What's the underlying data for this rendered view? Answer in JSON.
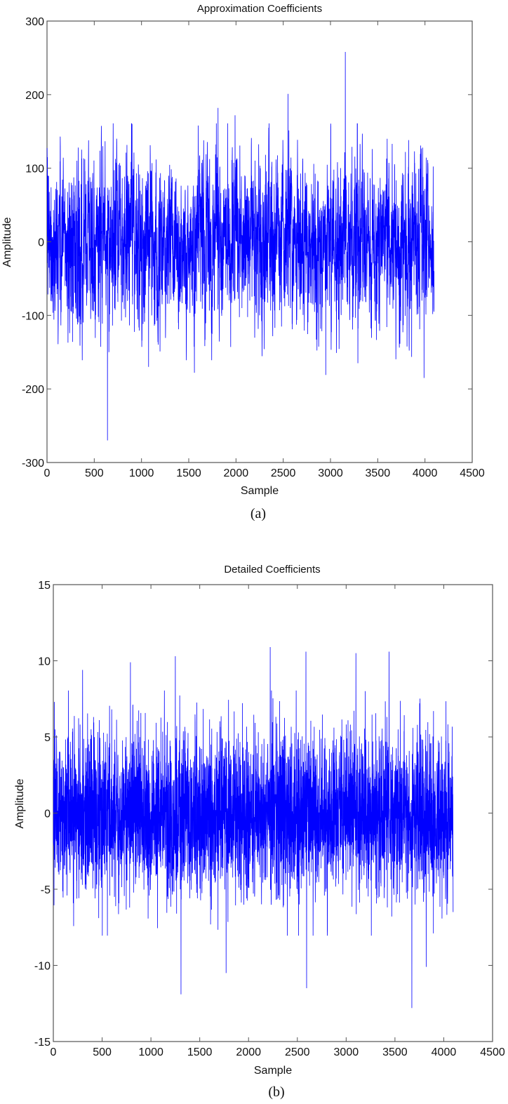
{
  "chart_data": [
    {
      "type": "line",
      "title": "Approximation Coefficients",
      "xlabel": "Sample",
      "ylabel": "Amplitude",
      "caption": "(a)",
      "xlim": [
        0,
        4500
      ],
      "ylim": [
        -300,
        300
      ],
      "xticks": [
        0,
        500,
        1000,
        1500,
        2000,
        2500,
        3000,
        3500,
        4000,
        4500
      ],
      "yticks": [
        -300,
        -200,
        -100,
        0,
        100,
        200,
        300
      ],
      "grid": false,
      "legend": null,
      "series": [
        {
          "name": "Approximation Coefficients",
          "color": "#0000ff",
          "n_samples": 4096,
          "x_range": [
            1,
            4096
          ],
          "typical_range": [
            -100,
            140
          ],
          "std_estimate": 55,
          "notable_points": [
            {
              "x": 5,
              "y": 115
            },
            {
              "x": 270,
              "y": -136
            },
            {
              "x": 330,
              "y": 128
            },
            {
              "x": 640,
              "y": -270
            },
            {
              "x": 655,
              "y": -150
            },
            {
              "x": 1075,
              "y": -170
            },
            {
              "x": 1560,
              "y": -178
            },
            {
              "x": 1810,
              "y": 182
            },
            {
              "x": 1990,
              "y": 172
            },
            {
              "x": 2550,
              "y": 201
            },
            {
              "x": 2950,
              "y": -181
            },
            {
              "x": 3157,
              "y": 258
            },
            {
              "x": 3290,
              "y": -165
            },
            {
              "x": 3600,
              "y": 140
            },
            {
              "x": 3990,
              "y": -185
            },
            {
              "x": 4096,
              "y": -40
            }
          ]
        }
      ]
    },
    {
      "type": "line",
      "title": "Detailed Coefficients",
      "xlabel": "Sample",
      "ylabel": "Amplitude",
      "caption": "(b)",
      "xlim": [
        0,
        4500
      ],
      "ylim": [
        -15,
        15
      ],
      "xticks": [
        0,
        500,
        1000,
        1500,
        2000,
        2500,
        3000,
        3500,
        4000,
        4500
      ],
      "yticks": [
        -15,
        -10,
        -5,
        0,
        5,
        10,
        15
      ],
      "grid": false,
      "legend": null,
      "series": [
        {
          "name": "Detailed Coefficients",
          "color": "#0000ff",
          "n_samples": 4096,
          "x_range": [
            1,
            4096
          ],
          "typical_range": [
            -6,
            7
          ],
          "std_estimate": 2.6,
          "notable_points": [
            {
              "x": 10,
              "y": 7.3
            },
            {
              "x": 300,
              "y": 9.4
            },
            {
              "x": 790,
              "y": 9.9
            },
            {
              "x": 1250,
              "y": 10.3
            },
            {
              "x": 1308,
              "y": -11.9
            },
            {
              "x": 1770,
              "y": -10.5
            },
            {
              "x": 2222,
              "y": 10.9
            },
            {
              "x": 2588,
              "y": 10.6
            },
            {
              "x": 2595,
              "y": -11.5
            },
            {
              "x": 3100,
              "y": 10.5
            },
            {
              "x": 3440,
              "y": 10.6
            },
            {
              "x": 3673,
              "y": -12.8
            },
            {
              "x": 3820,
              "y": -10.1
            },
            {
              "x": 4096,
              "y": -6.5
            }
          ]
        }
      ]
    }
  ],
  "panels": {
    "a": {
      "title": "Approximation Coefficients",
      "xlabel": "Sample",
      "ylabel": "Amplitude",
      "caption": "(a)"
    },
    "b": {
      "title": "Detailed Coefficients",
      "xlabel": "Sample",
      "ylabel": "Amplitude",
      "caption": "(b)"
    }
  }
}
